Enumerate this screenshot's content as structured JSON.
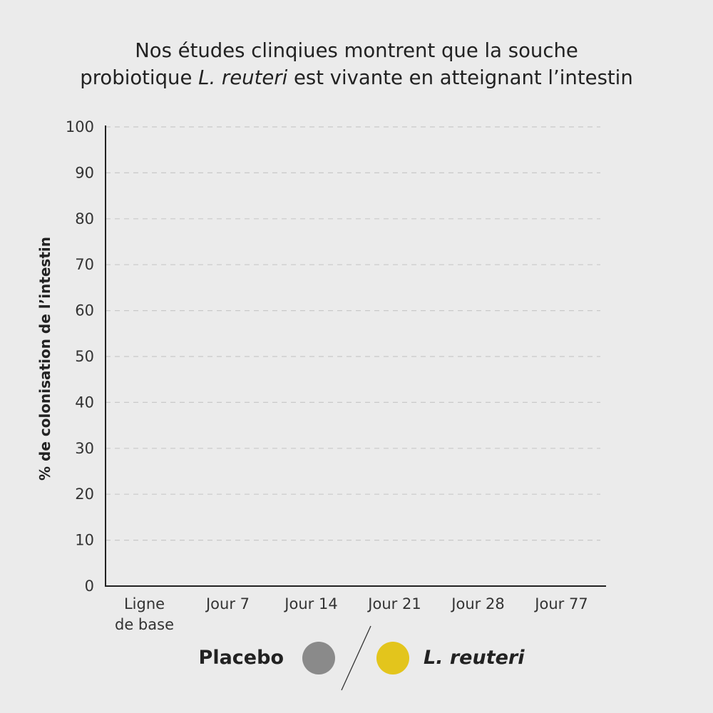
{
  "title": {
    "line1": "Nos études clinqiues montrent que la souche",
    "line2_prefix": "probiotique ",
    "line2_italic": "L. reuteri",
    "line2_suffix": " est vivante en atteignant l’intestin"
  },
  "chart_data": {
    "type": "bar",
    "title": "Nos études clinqiues montrent que la souche probiotique L. reuteri est vivante en atteignant l’intestin",
    "xlabel": "",
    "ylabel": "% de colonisation de l’intestin",
    "ylim": [
      0,
      100
    ],
    "yticks": [
      0,
      10,
      20,
      30,
      40,
      50,
      60,
      70,
      80,
      90,
      100
    ],
    "categories": [
      [
        "Ligne",
        "de base"
      ],
      [
        "Jour 7"
      ],
      [
        "Jour 14"
      ],
      [
        "Jour 21"
      ],
      [
        "Jour 28"
      ],
      [
        "Jour 77"
      ]
    ],
    "series": [
      {
        "name": "Placebo",
        "color": "#8a8a8a"
      },
      {
        "name": "L. reuteri",
        "color": "#e3c51c"
      }
    ],
    "grid": true,
    "legend_position": "bottom"
  },
  "colors": {
    "background": "#ebebeb",
    "axis": "#222222",
    "grid": "#c9c9c9",
    "placebo": "#8a8a8a",
    "reuteri": "#e3c51c"
  }
}
